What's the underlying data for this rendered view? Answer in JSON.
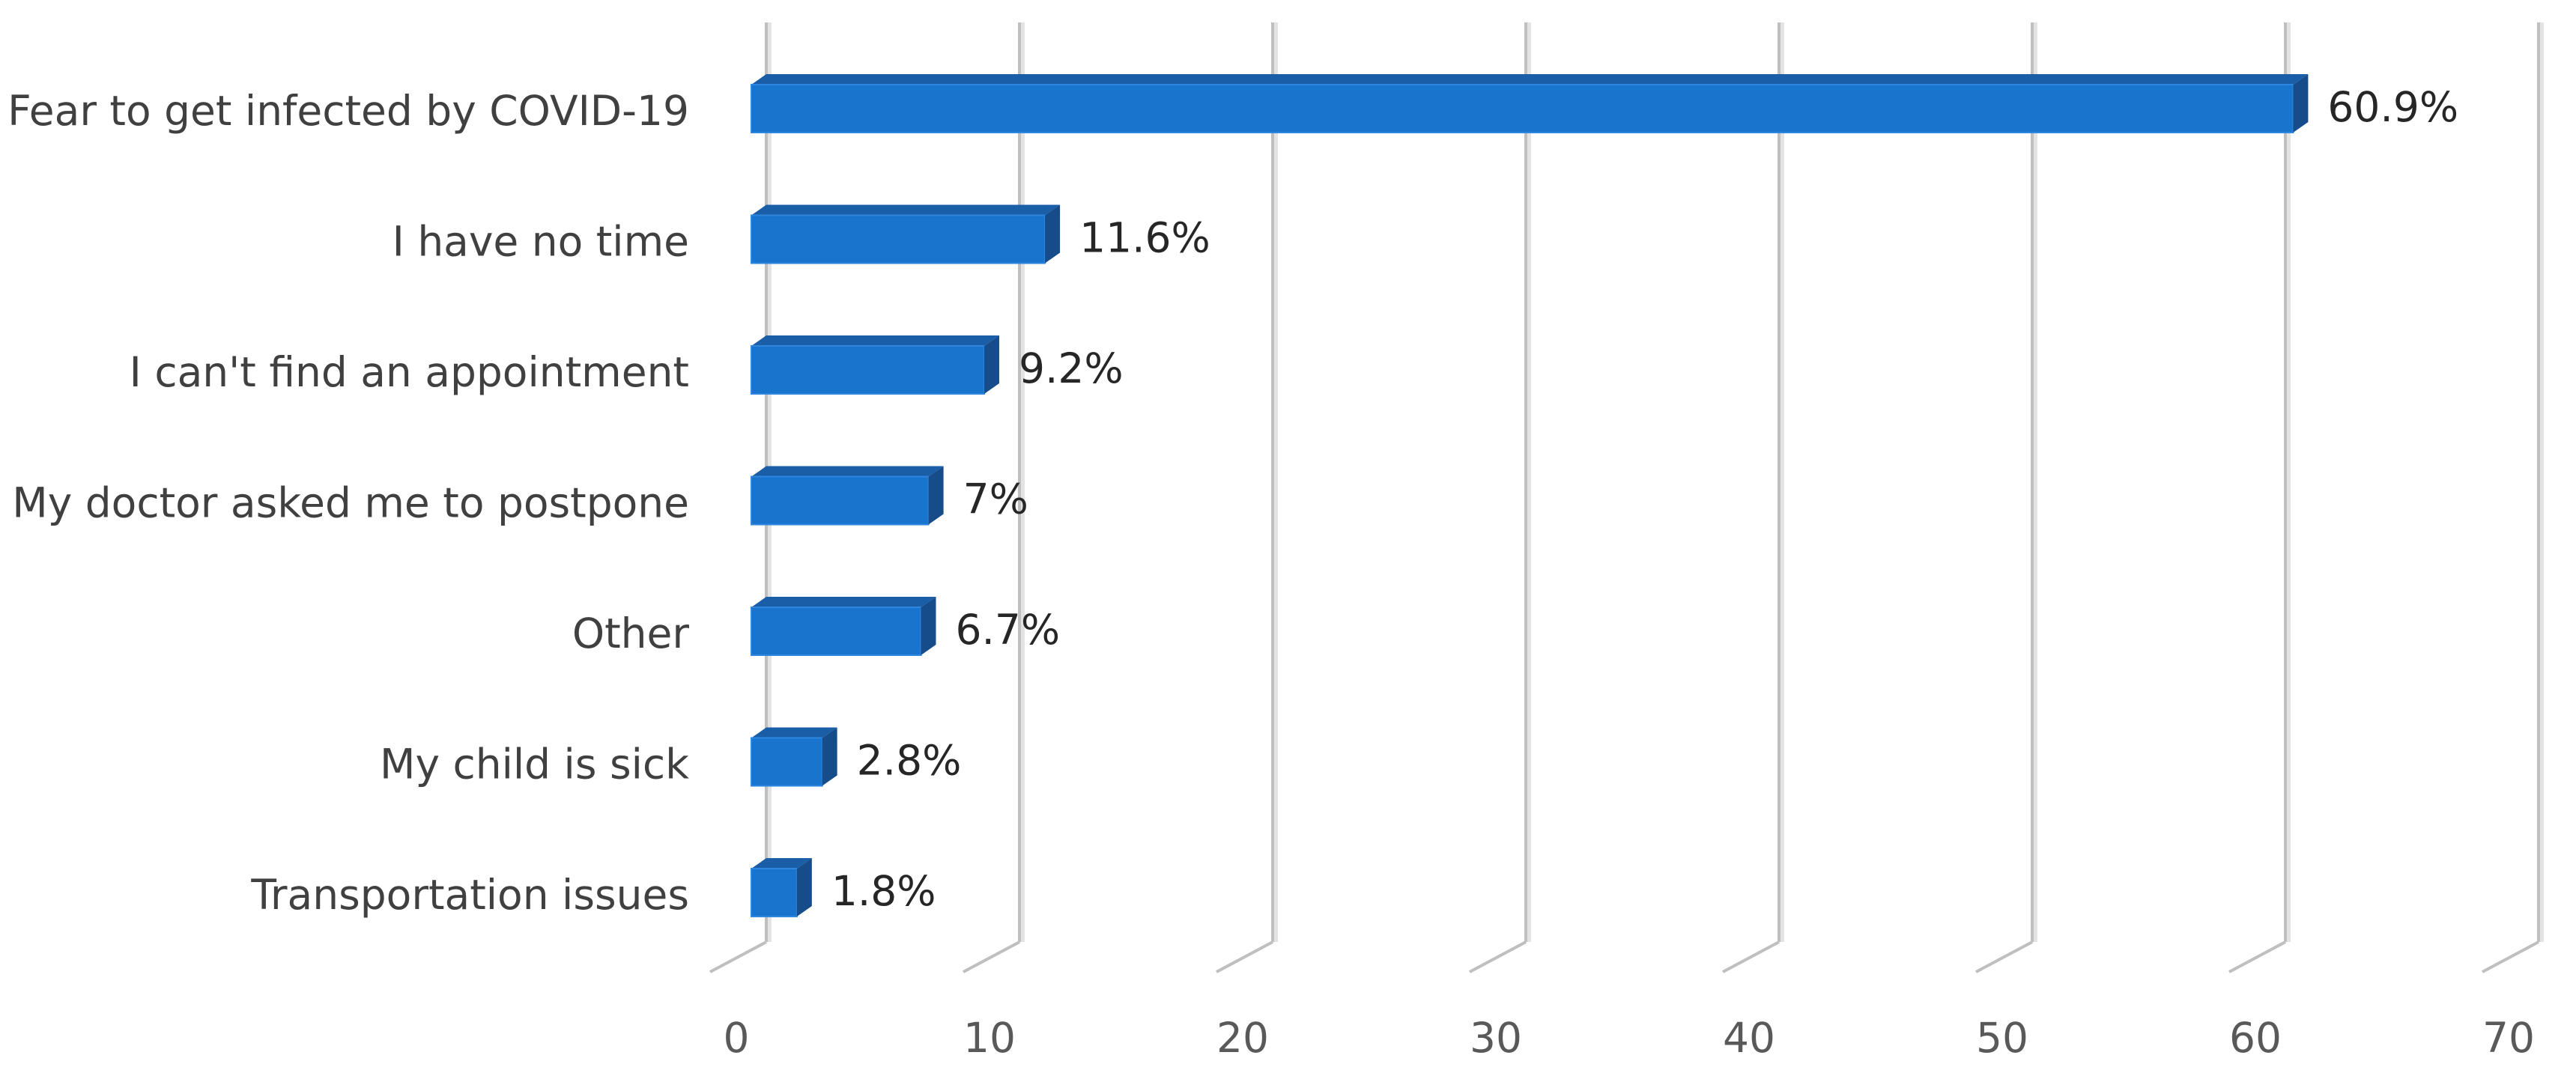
{
  "chart_data": {
    "type": "bar",
    "orientation": "horizontal",
    "style": "3d",
    "categories": [
      "Fear to get infected by COVID-19",
      "I have no time",
      "I can't find an appointment",
      "My doctor asked me to postpone",
      "Other",
      "My child is sick",
      "Transportation issues"
    ],
    "values": [
      60.9,
      11.6,
      9.2,
      7,
      6.7,
      2.8,
      1.8
    ],
    "data_labels": [
      "60.9%",
      "11.6%",
      "9.2%",
      "7%",
      "6.7%",
      "2.8%",
      "1.8%"
    ],
    "x_ticks": [
      "0",
      "10",
      "20",
      "30",
      "40",
      "50",
      "60",
      "70"
    ],
    "xlim": [
      0,
      70
    ],
    "title": "",
    "xlabel": "",
    "ylabel": "",
    "grid": true,
    "legend": false,
    "colors": {
      "bar_front": "#1874CD",
      "bar_top": "#1B5EA8",
      "bar_side": "#174C8A",
      "bar_edge": "#2E86DE",
      "grid": "#BFBFBF",
      "grid_shadow": "#E3E3E3",
      "category_text": "#404040",
      "value_text": "#262626",
      "tick_text": "#595959"
    }
  }
}
